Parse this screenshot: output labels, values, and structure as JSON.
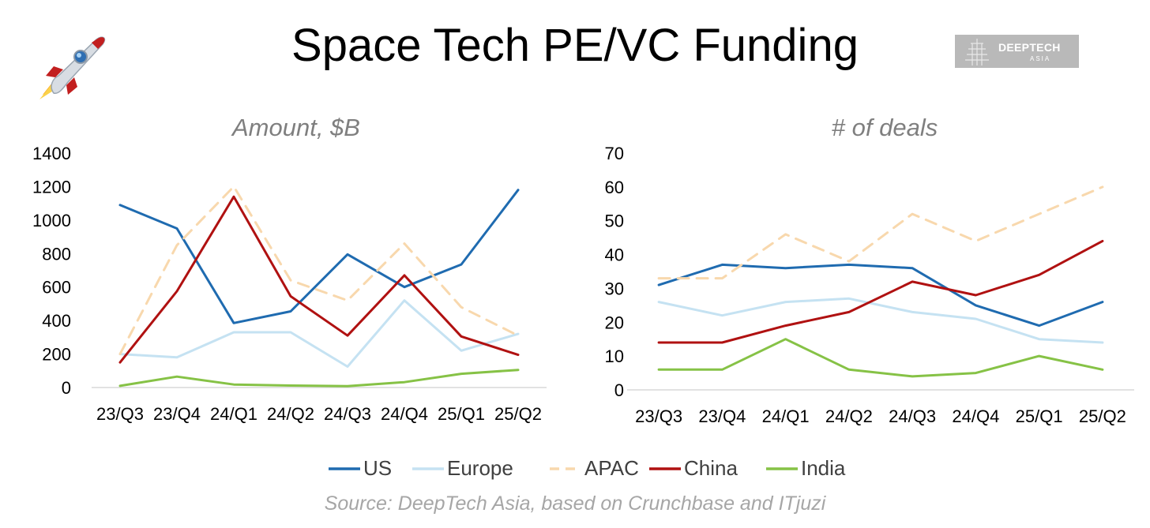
{
  "title": "Space Tech PE/VC Funding",
  "logo": {
    "line1": "DEEPTECH",
    "line2": "ASIA"
  },
  "source": "Source: DeepTech Asia, based on Crunchbase and ITjuzi",
  "legend": [
    {
      "name": "US",
      "color": "#1f6bb0",
      "dashed": false
    },
    {
      "name": "Europe",
      "color": "#c5e2f2",
      "dashed": false
    },
    {
      "name": "APAC",
      "color": "#f8d8ad",
      "dashed": true
    },
    {
      "name": "China",
      "color": "#b01111",
      "dashed": false
    },
    {
      "name": "India",
      "color": "#86c246",
      "dashed": false
    }
  ],
  "chart_data": [
    {
      "type": "line",
      "title": "Amount, $B",
      "categories": [
        "23/Q3",
        "23/Q4",
        "24/Q1",
        "24/Q2",
        "24/Q3",
        "24/Q4",
        "25/Q1",
        "25/Q2"
      ],
      "ylim": [
        0,
        1400
      ],
      "yticks": [
        "0",
        "200",
        "400",
        "600",
        "800",
        "1000",
        "1200",
        "1400"
      ],
      "series": [
        {
          "name": "US",
          "values": [
            1090,
            950,
            385,
            455,
            795,
            600,
            735,
            1180
          ]
        },
        {
          "name": "Europe",
          "values": [
            200,
            180,
            330,
            330,
            125,
            520,
            220,
            320
          ]
        },
        {
          "name": "APAC",
          "values": [
            200,
            850,
            1200,
            640,
            520,
            860,
            480,
            310
          ]
        },
        {
          "name": "China",
          "values": [
            150,
            575,
            1140,
            545,
            310,
            670,
            305,
            195
          ]
        },
        {
          "name": "India",
          "values": [
            10,
            65,
            18,
            12,
            8,
            32,
            82,
            105
          ]
        }
      ]
    },
    {
      "type": "line",
      "title": "# of deals",
      "categories": [
        "23/Q3",
        "23/Q4",
        "24/Q1",
        "24/Q2",
        "24/Q3",
        "24/Q4",
        "25/Q1",
        "25/Q2"
      ],
      "ylim": [
        0,
        70
      ],
      "yticks": [
        "0",
        "10",
        "20",
        "30",
        "40",
        "50",
        "60",
        "70"
      ],
      "series": [
        {
          "name": "US",
          "values": [
            31,
            37,
            36,
            37,
            36,
            25,
            19,
            26
          ]
        },
        {
          "name": "Europe",
          "values": [
            26,
            22,
            26,
            27,
            23,
            21,
            15,
            14
          ]
        },
        {
          "name": "APAC",
          "values": [
            33,
            33,
            46,
            38,
            52,
            44,
            52,
            60
          ]
        },
        {
          "name": "China",
          "values": [
            14,
            14,
            19,
            23,
            32,
            28,
            34,
            44
          ]
        },
        {
          "name": "India",
          "values": [
            6,
            6,
            15,
            6,
            4,
            5,
            10,
            6
          ]
        }
      ]
    }
  ]
}
